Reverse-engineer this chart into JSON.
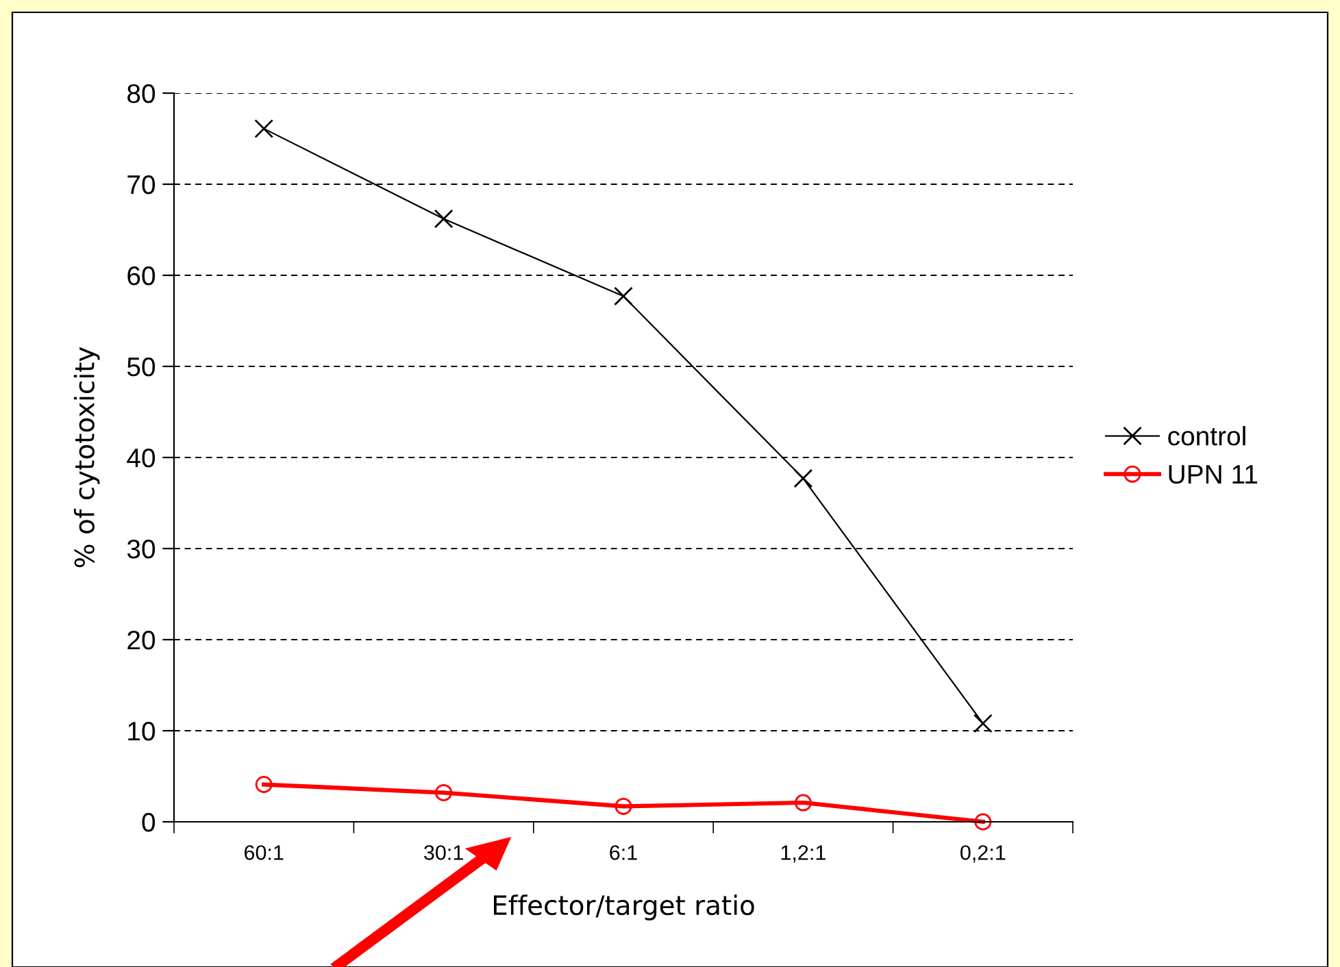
{
  "chart_data": {
    "type": "line",
    "xlabel": "Effector/target ratio",
    "ylabel": "% of cytotoxicity",
    "categories": [
      "60:1",
      "30:1",
      "6:1",
      "1,2:1",
      "0,2:1"
    ],
    "series": [
      {
        "name": "control",
        "color": "#000000",
        "marker": "cross",
        "values": [
          76.1,
          66.2,
          57.7,
          37.7,
          10.8
        ]
      },
      {
        "name": "UPN 11",
        "color": "#ff0000",
        "marker": "circle",
        "values": [
          4.1,
          3.2,
          1.7,
          2.1,
          0
        ]
      }
    ],
    "ylim": [
      0,
      80
    ],
    "yticks": [
      0,
      10,
      20,
      30,
      40,
      50,
      60,
      70,
      80
    ],
    "grid": "y",
    "legend": "right",
    "line_style": "solid"
  }
}
